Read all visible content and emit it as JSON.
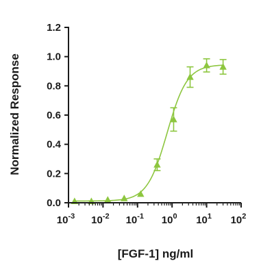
{
  "chart_data": {
    "type": "scatter",
    "title": "",
    "xlabel": "[FGF-1] ng/ml",
    "ylabel": "Normalized Response",
    "x_scale": "log",
    "xlim": [
      0.001,
      100
    ],
    "ylim": [
      0,
      1.2
    ],
    "x_ticks": [
      {
        "value": 0.001,
        "base": "10",
        "exp": "-3"
      },
      {
        "value": 0.01,
        "base": "10",
        "exp": "-2"
      },
      {
        "value": 0.1,
        "base": "10",
        "exp": "-1"
      },
      {
        "value": 1,
        "base": "10",
        "exp": "0"
      },
      {
        "value": 10,
        "base": "10",
        "exp": "1"
      },
      {
        "value": 100,
        "base": "10",
        "exp": "2"
      }
    ],
    "y_ticks": [
      "0.0",
      "0.2",
      "0.4",
      "0.6",
      "0.8",
      "1.0",
      "1.2"
    ],
    "series": [
      {
        "marker": "triangle",
        "color": "#8dc63f",
        "x": [
          0.0015,
          0.0046,
          0.0137,
          0.041,
          0.123,
          0.37,
          1.11,
          3.33,
          10,
          30
        ],
        "y": [
          0.01,
          0.01,
          0.02,
          0.03,
          0.06,
          0.26,
          0.57,
          0.86,
          0.94,
          0.93
        ],
        "error": [
          0,
          0,
          0,
          0,
          0,
          0.04,
          0.08,
          0.07,
          0.045,
          0.05
        ]
      }
    ],
    "fit_curve": {
      "model": "four-parameter logistic",
      "bottom": 0.012,
      "top": 0.945,
      "ec50": 0.72,
      "hill": 1.5
    },
    "grid": false,
    "legend": "none"
  }
}
